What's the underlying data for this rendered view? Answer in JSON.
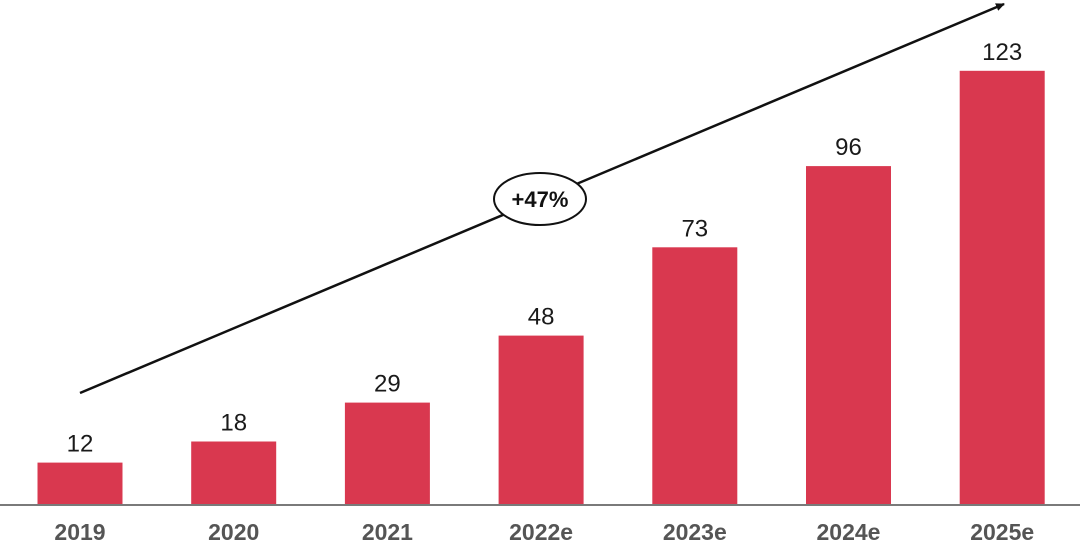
{
  "chart_data": {
    "type": "bar",
    "categories": [
      "2019",
      "2020",
      "2021",
      "2022e",
      "2023e",
      "2024e",
      "2025e"
    ],
    "values": [
      12,
      18,
      29,
      48,
      73,
      96,
      123
    ],
    "title": "",
    "xlabel": "",
    "ylabel": "",
    "ylim": [
      0,
      130
    ],
    "grid": false,
    "legend": "none",
    "bar_color": "#D9384F",
    "annotation": {
      "text": "+47%",
      "type": "growth-arrow"
    }
  }
}
